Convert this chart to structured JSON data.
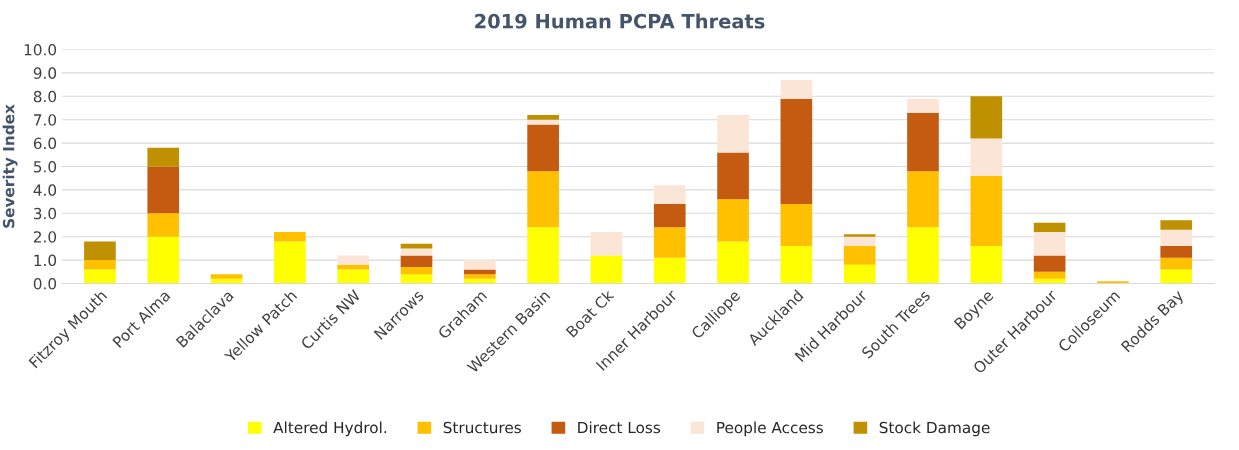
{
  "chart_data": {
    "type": "bar",
    "title": "2019 Human PCPA Threats",
    "ylabel": "Severity Index",
    "stacked": true,
    "categories": [
      "Fitzroy Mouth",
      "Port Alma",
      "Balaclava",
      "Yellow Patch",
      "Curtis NW",
      "Narrows",
      "Graham",
      "Western Basin",
      "Boat Ck",
      "Inner Harbour",
      "Calliope",
      "Auckland",
      "Mid Harbour",
      "South Trees",
      "Boyne",
      "Outer Harbour",
      "Colloseum",
      "Rodds Bay"
    ],
    "series": [
      {
        "name": "Altered Hydrol.",
        "color": "#ffff00",
        "values": [
          0.6,
          2.0,
          0.2,
          1.8,
          0.6,
          0.4,
          0.2,
          2.4,
          1.2,
          1.1,
          1.8,
          1.6,
          0.8,
          2.4,
          1.6,
          0.2,
          0,
          0.6
        ]
      },
      {
        "name": "Structures",
        "color": "#ffc000",
        "values": [
          0.4,
          1.0,
          0.2,
          0.4,
          0.2,
          0.3,
          0.2,
          2.4,
          0,
          1.3,
          1.8,
          1.8,
          0.8,
          2.4,
          3.0,
          0.3,
          0.1,
          0.5
        ]
      },
      {
        "name": "Direct Loss",
        "color": "#c55a11",
        "values": [
          0,
          2.0,
          0,
          0,
          0,
          0.5,
          0.2,
          2.0,
          0,
          1.0,
          2.0,
          4.5,
          0,
          2.5,
          0,
          0.7,
          0,
          0.5
        ]
      },
      {
        "name": "People Access",
        "color": "#fbe5d6",
        "values": [
          0,
          0,
          0,
          0,
          0.4,
          0.3,
          0.4,
          0.2,
          1.0,
          0.8,
          1.6,
          0.8,
          0.4,
          0.6,
          1.6,
          1.0,
          0,
          0.7
        ]
      },
      {
        "name": "Stock Damage",
        "color": "#bf9000",
        "values": [
          0.8,
          0.8,
          0,
          0,
          0,
          0.2,
          0,
          0.2,
          0,
          0,
          0,
          0,
          0.1,
          0,
          1.8,
          0.4,
          0,
          0.4
        ]
      }
    ],
    "ylim": [
      0,
      10
    ],
    "yticks": [
      {
        "value": 0,
        "label": "0.0"
      },
      {
        "value": 1,
        "label": "1.0"
      },
      {
        "value": 2,
        "label": "2.0"
      },
      {
        "value": 3,
        "label": "3.0"
      },
      {
        "value": 4,
        "label": "4.0"
      },
      {
        "value": 5,
        "label": "5.0"
      },
      {
        "value": 6,
        "label": "6.0"
      },
      {
        "value": 7,
        "label": "7.0"
      },
      {
        "value": 8,
        "label": "8.0"
      },
      {
        "value": 9,
        "label": "9.0"
      },
      {
        "value": 10,
        "label": "10.0"
      }
    ],
    "grid": "y",
    "legend": "bottom"
  }
}
